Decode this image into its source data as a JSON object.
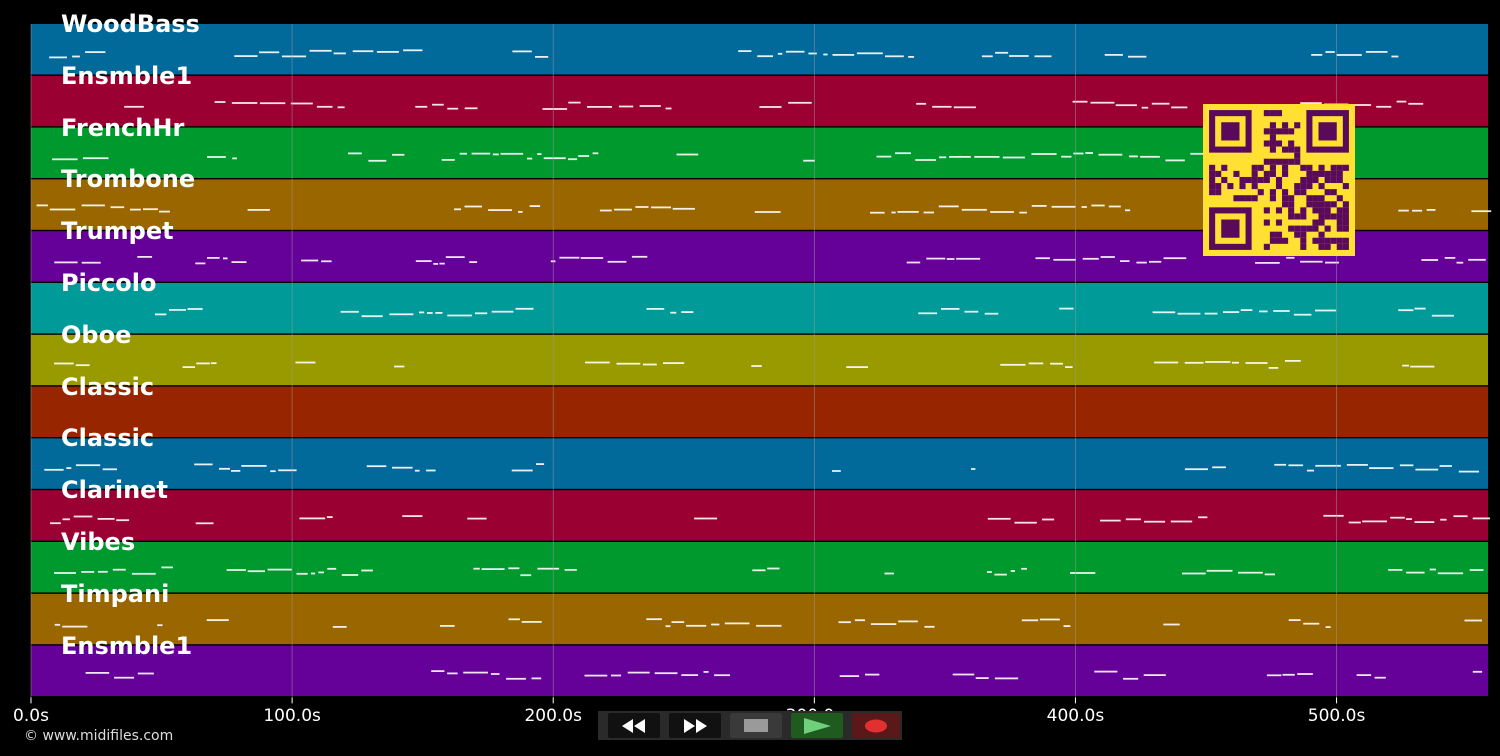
{
  "colors": {
    "background": "#000000",
    "note": "#ffffff",
    "grid": "#9a9a9a",
    "qr_fg": "#ffe033",
    "qr_bg": "#5a0a5a"
  },
  "tracks": [
    {
      "name": "WoodBass",
      "color": "#026a9a"
    },
    {
      "name": "Ensmble1",
      "color": "#9a0032"
    },
    {
      "name": "FrenchHr",
      "color": "#00992e"
    },
    {
      "name": "Trombone",
      "color": "#996600"
    },
    {
      "name": "Trumpet",
      "color": "#650099"
    },
    {
      "name": "Piccolo",
      "color": "#009a99"
    },
    {
      "name": "Oboe",
      "color": "#999900"
    },
    {
      "name": "Classic",
      "color": "#972600"
    },
    {
      "name": "Classic",
      "color": "#026a9a"
    },
    {
      "name": "Clarinet",
      "color": "#9a0032"
    },
    {
      "name": "Vibes",
      "color": "#00992e"
    },
    {
      "name": "Timpani",
      "color": "#996600"
    },
    {
      "name": "Ensmble1",
      "color": "#650099"
    }
  ],
  "time_axis": {
    "range": [
      0,
      558
    ],
    "ticks": [
      {
        "value": 0,
        "label": "0.0s"
      },
      {
        "value": 100,
        "label": "100.0s"
      },
      {
        "value": 200,
        "label": "200.0s"
      },
      {
        "value": 300,
        "label": "300.0s"
      },
      {
        "value": 400,
        "label": "400.0s"
      },
      {
        "value": 500,
        "label": "500.0s"
      }
    ]
  },
  "footer": {
    "copyright": "© www.midifiles.com"
  },
  "transport": {
    "rewind_icon": "rewind-icon",
    "forward_icon": "fast-forward-icon",
    "stop_icon": "stop-icon",
    "play_icon": "play-icon",
    "record_icon": "record-icon"
  }
}
